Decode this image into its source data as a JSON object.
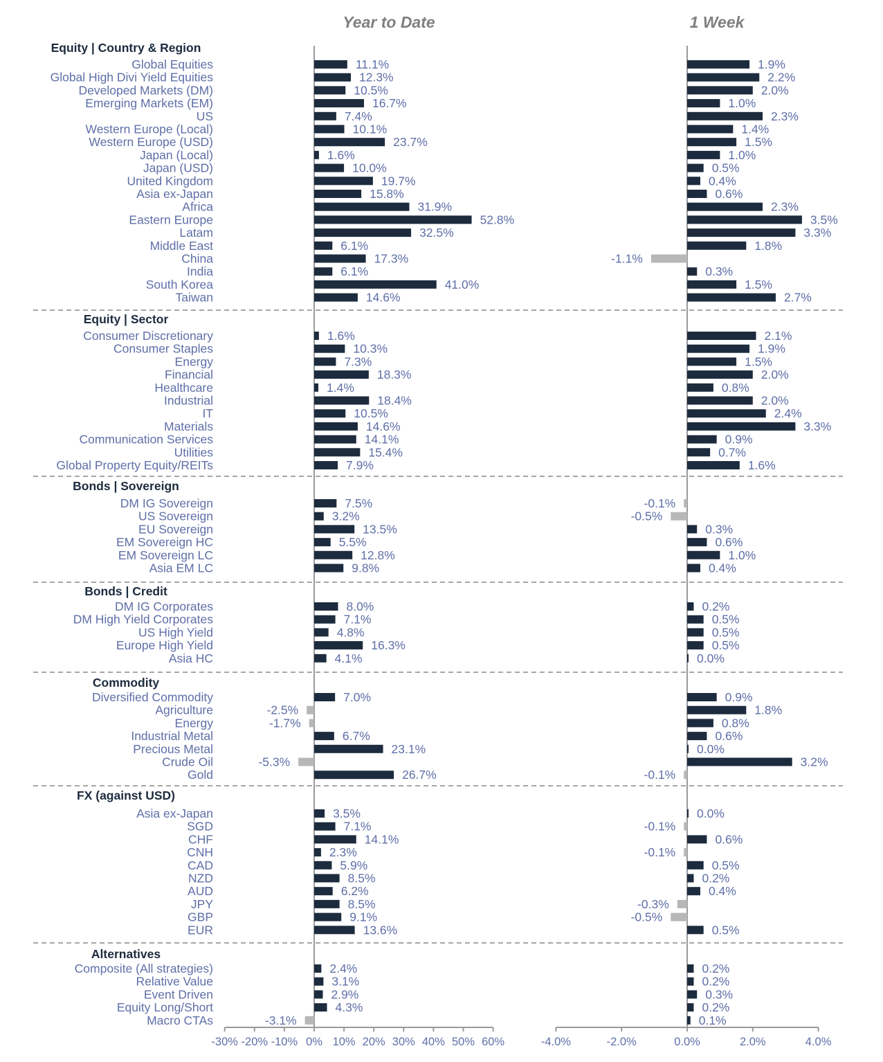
{
  "chart_data": {
    "type": "bar",
    "orientation": "horizontal",
    "panels": [
      {
        "title": "Year to Date",
        "xlim": [
          -30,
          60
        ],
        "ticks": [
          "-30%",
          "-20%",
          "-10%",
          "0%",
          "10%",
          "20%",
          "30%",
          "40%",
          "50%",
          "60%"
        ]
      },
      {
        "title": "1 Week",
        "xlim": [
          -4,
          4
        ],
        "ticks": [
          "-4.0%",
          "-2.0%",
          "0.0%",
          "2.0%",
          "4.0%"
        ]
      }
    ],
    "colors": {
      "positive": "#1d2b3e",
      "negative": "#b7b7b7"
    },
    "groups": [
      {
        "name": "Equity | Country & Region",
        "rows": [
          {
            "label": "Global Equities",
            "ytd": 11.1,
            "wk": 1.9
          },
          {
            "label": "Global High Divi Yield Equities",
            "ytd": 12.3,
            "wk": 2.2
          },
          {
            "label": "Developed Markets (DM)",
            "ytd": 10.5,
            "wk": 2.0
          },
          {
            "label": "Emerging Markets (EM)",
            "ytd": 16.7,
            "wk": 1.0
          },
          {
            "label": "US",
            "ytd": 7.4,
            "wk": 2.3
          },
          {
            "label": "Western Europe (Local)",
            "ytd": 10.1,
            "wk": 1.4
          },
          {
            "label": "Western Europe (USD)",
            "ytd": 23.7,
            "wk": 1.5
          },
          {
            "label": "Japan (Local)",
            "ytd": 1.6,
            "wk": 1.0
          },
          {
            "label": "Japan (USD)",
            "ytd": 10.0,
            "wk": 0.5
          },
          {
            "label": "United Kingdom",
            "ytd": 19.7,
            "wk": 0.4
          },
          {
            "label": "Asia ex-Japan",
            "ytd": 15.8,
            "wk": 0.6
          },
          {
            "label": "Africa",
            "ytd": 31.9,
            "wk": 2.3
          },
          {
            "label": "Eastern Europe",
            "ytd": 52.8,
            "wk": 3.5
          },
          {
            "label": "Latam",
            "ytd": 32.5,
            "wk": 3.3
          },
          {
            "label": "Middle East",
            "ytd": 6.1,
            "wk": 1.8
          },
          {
            "label": "China",
            "ytd": 17.3,
            "wk": -1.1
          },
          {
            "label": "India",
            "ytd": 6.1,
            "wk": 0.3
          },
          {
            "label": "South Korea",
            "ytd": 41.0,
            "wk": 1.5
          },
          {
            "label": "Taiwan",
            "ytd": 14.6,
            "wk": 2.7
          }
        ]
      },
      {
        "name": "Equity | Sector",
        "rows": [
          {
            "label": "Consumer Discretionary",
            "ytd": 1.6,
            "wk": 2.1
          },
          {
            "label": "Consumer Staples",
            "ytd": 10.3,
            "wk": 1.9
          },
          {
            "label": "Energy",
            "ytd": 7.3,
            "wk": 1.5
          },
          {
            "label": "Financial",
            "ytd": 18.3,
            "wk": 2.0
          },
          {
            "label": "Healthcare",
            "ytd": 1.4,
            "wk": 0.8
          },
          {
            "label": "Industrial",
            "ytd": 18.4,
            "wk": 2.0
          },
          {
            "label": "IT",
            "ytd": 10.5,
            "wk": 2.4
          },
          {
            "label": "Materials",
            "ytd": 14.6,
            "wk": 3.3
          },
          {
            "label": "Communication Services",
            "ytd": 14.1,
            "wk": 0.9
          },
          {
            "label": "Utilities",
            "ytd": 15.4,
            "wk": 0.7
          },
          {
            "label": "Global Property Equity/REITs",
            "ytd": 7.9,
            "wk": 1.6
          }
        ]
      },
      {
        "name": "Bonds | Sovereign",
        "rows": [
          {
            "label": "DM IG Sovereign",
            "ytd": 7.5,
            "wk": -0.1
          },
          {
            "label": "US Sovereign",
            "ytd": 3.2,
            "wk": -0.5
          },
          {
            "label": "EU Sovereign",
            "ytd": 13.5,
            "wk": 0.3
          },
          {
            "label": "EM Sovereign HC",
            "ytd": 5.5,
            "wk": 0.6
          },
          {
            "label": "EM Sovereign LC",
            "ytd": 12.8,
            "wk": 1.0
          },
          {
            "label": "Asia EM LC",
            "ytd": 9.8,
            "wk": 0.4
          }
        ]
      },
      {
        "name": "Bonds | Credit",
        "rows": [
          {
            "label": "DM IG Corporates",
            "ytd": 8.0,
            "wk": 0.2
          },
          {
            "label": "DM High Yield Corporates",
            "ytd": 7.1,
            "wk": 0.5
          },
          {
            "label": "US High Yield",
            "ytd": 4.8,
            "wk": 0.5
          },
          {
            "label": "Europe High Yield",
            "ytd": 16.3,
            "wk": 0.5
          },
          {
            "label": "Asia HC",
            "ytd": 4.1,
            "wk": 0.0
          }
        ]
      },
      {
        "name": "Commodity",
        "rows": [
          {
            "label": "Diversified Commodity",
            "ytd": 7.0,
            "wk": 0.9
          },
          {
            "label": "Agriculture",
            "ytd": -2.5,
            "wk": 1.8
          },
          {
            "label": "Energy",
            "ytd": -1.7,
            "wk": 0.8
          },
          {
            "label": "Industrial Metal",
            "ytd": 6.7,
            "wk": 0.6
          },
          {
            "label": "Precious Metal",
            "ytd": 23.1,
            "wk": 0.0
          },
          {
            "label": "Crude Oil",
            "ytd": -5.3,
            "wk": 3.2
          },
          {
            "label": "Gold",
            "ytd": 26.7,
            "wk": -0.1
          }
        ]
      },
      {
        "name": "FX (against USD)",
        "rows": [
          {
            "label": "Asia ex-Japan",
            "ytd": 3.5,
            "wk": 0.0
          },
          {
            "label": "SGD",
            "ytd": 7.1,
            "wk": -0.1
          },
          {
            "label": "CHF",
            "ytd": 14.1,
            "wk": 0.6
          },
          {
            "label": "CNH",
            "ytd": 2.3,
            "wk": -0.1
          },
          {
            "label": "CAD",
            "ytd": 5.9,
            "wk": 0.5
          },
          {
            "label": "NZD",
            "ytd": 8.5,
            "wk": 0.2
          },
          {
            "label": "AUD",
            "ytd": 6.2,
            "wk": 0.4
          },
          {
            "label": "JPY",
            "ytd": 8.5,
            "wk": -0.3
          },
          {
            "label": "GBP",
            "ytd": 9.1,
            "wk": -0.5
          },
          {
            "label": "EUR",
            "ytd": 13.6,
            "wk": 0.5
          }
        ]
      },
      {
        "name": "Alternatives",
        "rows": [
          {
            "label": "Composite (All strategies)",
            "ytd": 2.4,
            "wk": 0.2
          },
          {
            "label": "Relative Value",
            "ytd": 3.1,
            "wk": 0.2
          },
          {
            "label": "Event Driven",
            "ytd": 2.9,
            "wk": 0.3
          },
          {
            "label": "Equity Long/Short",
            "ytd": 4.3,
            "wk": 0.2
          },
          {
            "label": "Macro CTAs",
            "ytd": -3.1,
            "wk": 0.1
          }
        ]
      }
    ]
  }
}
